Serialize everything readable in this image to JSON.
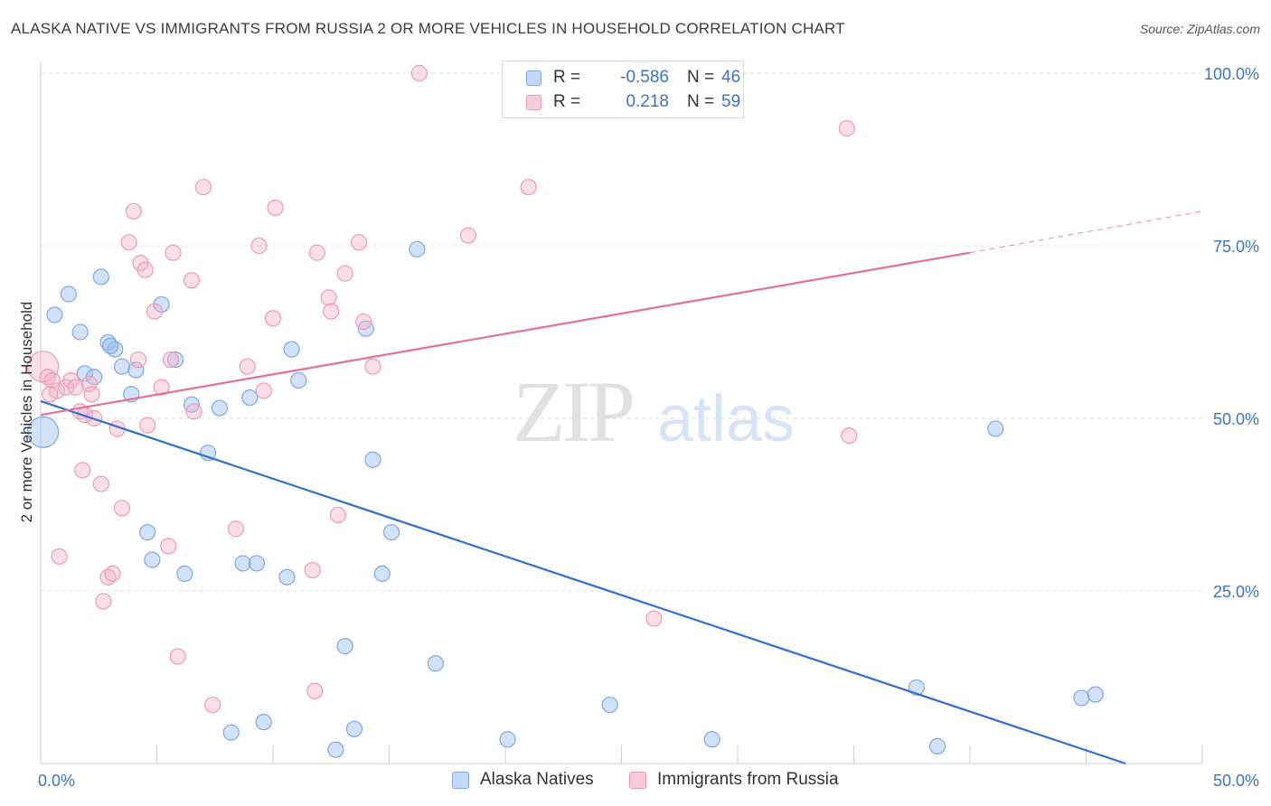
{
  "header": {
    "title": "ALASKA NATIVE VS IMMIGRANTS FROM RUSSIA 2 OR MORE VEHICLES IN HOUSEHOLD CORRELATION CHART",
    "source": "Source: ZipAtlas.com"
  },
  "watermark": {
    "zip": "ZIP",
    "atlas": "atlas"
  },
  "legend": {
    "rows": [
      {
        "r_label": "R =",
        "r_value": "-0.586",
        "n_label": "N =",
        "n_value": "46",
        "color": "#9bbef0"
      },
      {
        "r_label": "R =",
        "r_value": "0.218",
        "n_label": "N =",
        "n_value": "59",
        "color": "#f2a9c0"
      }
    ]
  },
  "bottom_legend": [
    {
      "label": "Alaska Natives",
      "color": "#9bbef0"
    },
    {
      "label": "Immigrants from Russia",
      "color": "#f2a9c0"
    }
  ],
  "axes": {
    "ylabel": "2 or more Vehicles in Household",
    "x_ticks": [
      "0.0%",
      "50.0%"
    ],
    "y_ticks": [
      "25.0%",
      "50.0%",
      "75.0%",
      "100.0%"
    ]
  },
  "chart_data": {
    "type": "scatter",
    "title": "ALASKA NATIVE VS IMMIGRANTS FROM RUSSIA 2 OR MORE VEHICLES IN HOUSEHOLD CORRELATION CHART",
    "xlabel": "",
    "ylabel": "2 or more Vehicles in Household",
    "xlim": [
      0,
      50
    ],
    "ylim": [
      0,
      100
    ],
    "x_tick_values": [
      0,
      50
    ],
    "y_tick_values": [
      25,
      50,
      75,
      100
    ],
    "grid": true,
    "legend_position": "top-center",
    "series": [
      {
        "name": "Alaska Natives",
        "color": "#6fa0e8",
        "trend": {
          "x": [
            0,
            46.7
          ],
          "y": [
            52.5,
            0
          ]
        },
        "points": [
          {
            "x": 0.1,
            "y": 48.0,
            "big": true
          },
          {
            "x": 0.6,
            "y": 65.0
          },
          {
            "x": 1.2,
            "y": 68.0
          },
          {
            "x": 1.7,
            "y": 62.5
          },
          {
            "x": 1.9,
            "y": 56.5
          },
          {
            "x": 2.3,
            "y": 56.0
          },
          {
            "x": 2.6,
            "y": 70.5
          },
          {
            "x": 2.9,
            "y": 61.0
          },
          {
            "x": 3.2,
            "y": 60.0
          },
          {
            "x": 3.5,
            "y": 57.5
          },
          {
            "x": 3.9,
            "y": 53.5
          },
          {
            "x": 4.1,
            "y": 57.0
          },
          {
            "x": 4.6,
            "y": 33.5
          },
          {
            "x": 4.8,
            "y": 29.5
          },
          {
            "x": 5.2,
            "y": 66.5
          },
          {
            "x": 5.8,
            "y": 58.5
          },
          {
            "x": 6.2,
            "y": 27.5
          },
          {
            "x": 6.5,
            "y": 52.0
          },
          {
            "x": 7.2,
            "y": 45.0
          },
          {
            "x": 7.7,
            "y": 51.5
          },
          {
            "x": 8.2,
            "y": 4.5
          },
          {
            "x": 8.7,
            "y": 29.0
          },
          {
            "x": 9.0,
            "y": 53.0
          },
          {
            "x": 9.3,
            "y": 29.0
          },
          {
            "x": 9.6,
            "y": 6.0
          },
          {
            "x": 10.6,
            "y": 27.0
          },
          {
            "x": 10.8,
            "y": 60.0
          },
          {
            "x": 11.1,
            "y": 55.5
          },
          {
            "x": 12.7,
            "y": 2.0
          },
          {
            "x": 13.1,
            "y": 17.0
          },
          {
            "x": 13.5,
            "y": 5.0
          },
          {
            "x": 14.0,
            "y": 63.0
          },
          {
            "x": 14.3,
            "y": 44.0
          },
          {
            "x": 14.7,
            "y": 27.5
          },
          {
            "x": 15.1,
            "y": 33.5
          },
          {
            "x": 16.2,
            "y": 74.5
          },
          {
            "x": 17.0,
            "y": 14.5
          },
          {
            "x": 20.1,
            "y": 3.5
          },
          {
            "x": 24.5,
            "y": 8.5
          },
          {
            "x": 28.9,
            "y": 3.5
          },
          {
            "x": 37.7,
            "y": 11.0
          },
          {
            "x": 38.6,
            "y": 2.5
          },
          {
            "x": 41.1,
            "y": 48.5
          },
          {
            "x": 44.8,
            "y": 9.5
          },
          {
            "x": 45.4,
            "y": 10.0
          },
          {
            "x": 3.0,
            "y": 60.5
          }
        ]
      },
      {
        "name": "Immigrants from Russia",
        "color": "#ee8fb0",
        "trend": {
          "x": [
            0,
            40
          ],
          "y": [
            50.5,
            74.0
          ]
        },
        "trend_dashed": {
          "x": [
            40,
            50
          ],
          "y": [
            74.0,
            80.0
          ]
        },
        "points": [
          {
            "x": 0.1,
            "y": 57.5,
            "big": true
          },
          {
            "x": 0.3,
            "y": 56.0
          },
          {
            "x": 0.5,
            "y": 55.5
          },
          {
            "x": 0.7,
            "y": 54.0
          },
          {
            "x": 0.8,
            "y": 30.0
          },
          {
            "x": 1.1,
            "y": 54.5
          },
          {
            "x": 1.3,
            "y": 55.5
          },
          {
            "x": 1.7,
            "y": 51.0
          },
          {
            "x": 1.8,
            "y": 42.5
          },
          {
            "x": 2.1,
            "y": 55.0
          },
          {
            "x": 2.2,
            "y": 53.5
          },
          {
            "x": 2.3,
            "y": 50.0
          },
          {
            "x": 2.6,
            "y": 40.5
          },
          {
            "x": 2.7,
            "y": 23.5
          },
          {
            "x": 2.9,
            "y": 27.0
          },
          {
            "x": 3.1,
            "y": 27.5
          },
          {
            "x": 3.3,
            "y": 48.5
          },
          {
            "x": 3.5,
            "y": 37.0
          },
          {
            "x": 3.8,
            "y": 75.5
          },
          {
            "x": 4.0,
            "y": 80.0
          },
          {
            "x": 4.2,
            "y": 58.5
          },
          {
            "x": 4.3,
            "y": 72.5
          },
          {
            "x": 4.5,
            "y": 71.5
          },
          {
            "x": 4.6,
            "y": 49.0
          },
          {
            "x": 4.9,
            "y": 65.5
          },
          {
            "x": 5.2,
            "y": 54.5
          },
          {
            "x": 5.5,
            "y": 31.5
          },
          {
            "x": 5.6,
            "y": 58.5
          },
          {
            "x": 5.7,
            "y": 74.0
          },
          {
            "x": 5.9,
            "y": 15.5
          },
          {
            "x": 6.5,
            "y": 70.0
          },
          {
            "x": 6.6,
            "y": 51.0
          },
          {
            "x": 7.0,
            "y": 83.5
          },
          {
            "x": 7.4,
            "y": 8.5
          },
          {
            "x": 8.4,
            "y": 34.0
          },
          {
            "x": 8.9,
            "y": 57.5
          },
          {
            "x": 9.4,
            "y": 75.0
          },
          {
            "x": 9.6,
            "y": 54.0
          },
          {
            "x": 10.0,
            "y": 64.5
          },
          {
            "x": 10.1,
            "y": 80.5
          },
          {
            "x": 11.7,
            "y": 28.0
          },
          {
            "x": 11.8,
            "y": 10.5
          },
          {
            "x": 11.9,
            "y": 74.0
          },
          {
            "x": 12.4,
            "y": 67.5
          },
          {
            "x": 12.5,
            "y": 65.5
          },
          {
            "x": 12.8,
            "y": 36.0
          },
          {
            "x": 13.1,
            "y": 71.0
          },
          {
            "x": 13.7,
            "y": 75.5
          },
          {
            "x": 13.9,
            "y": 64.0
          },
          {
            "x": 14.3,
            "y": 57.5
          },
          {
            "x": 16.3,
            "y": 100.0
          },
          {
            "x": 18.4,
            "y": 76.5
          },
          {
            "x": 21.0,
            "y": 83.5
          },
          {
            "x": 26.4,
            "y": 21.0
          },
          {
            "x": 34.7,
            "y": 92.0
          },
          {
            "x": 34.8,
            "y": 47.5
          },
          {
            "x": 1.9,
            "y": 50.5
          },
          {
            "x": 0.4,
            "y": 53.5
          },
          {
            "x": 1.5,
            "y": 54.5
          }
        ]
      }
    ]
  }
}
